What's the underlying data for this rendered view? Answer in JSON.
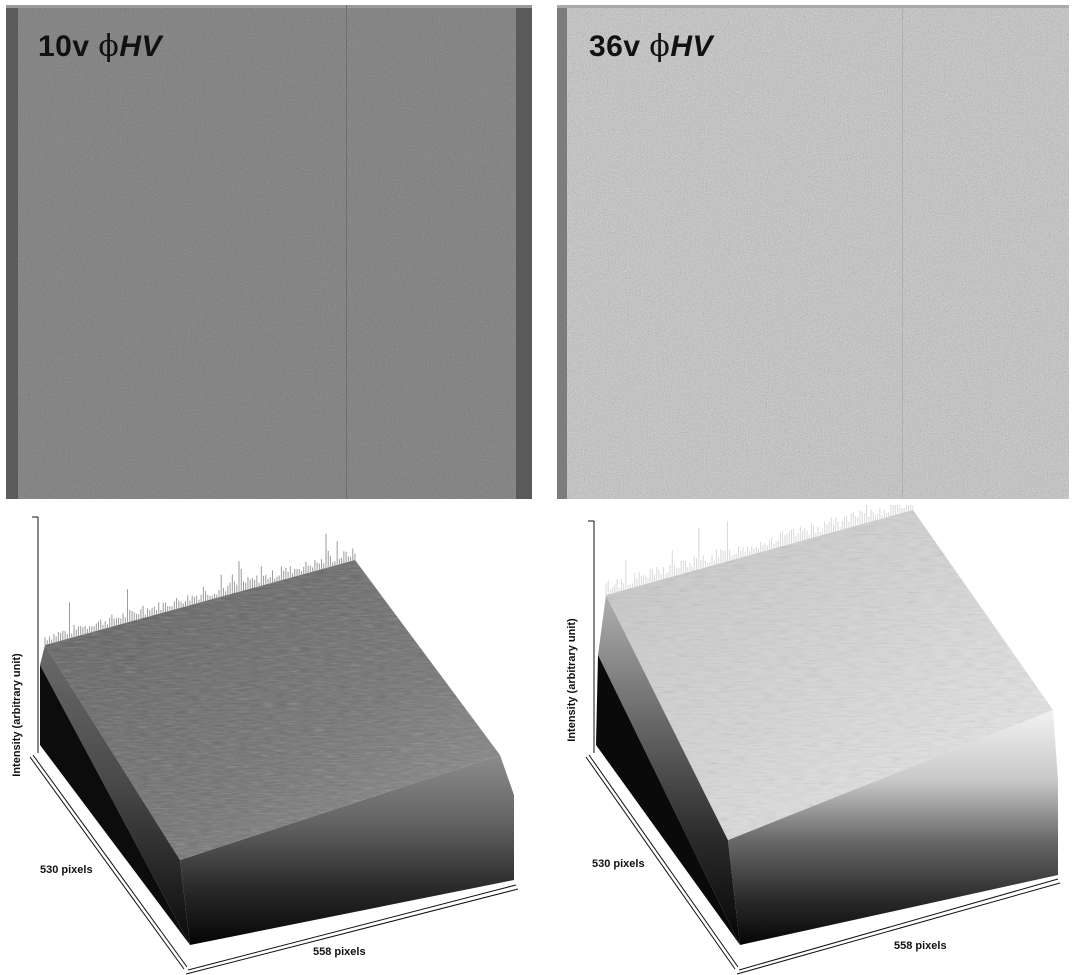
{
  "panels": [
    {
      "label_voltage": "10v ",
      "label_phi": "ϕ",
      "label_hv": "HV",
      "surface": {
        "zlabel": "Intensity (arbitrary unit)",
        "ylabel": "530 pixels",
        "xlabel": "558 pixels"
      }
    },
    {
      "label_voltage": "36v ",
      "label_phi": "ϕ",
      "label_hv": "HV",
      "surface": {
        "zlabel": "Intensity (arbitrary unit)",
        "ylabel": "530 pixels",
        "xlabel": "558 pixels"
      }
    }
  ]
}
